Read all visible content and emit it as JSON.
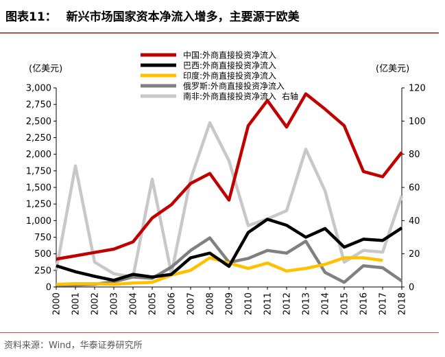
{
  "header": {
    "figure_label": "图表11：",
    "title": "新兴市场国家资本净流入增多，主要源于欧美"
  },
  "footer": {
    "source": "资料来源：Wind，华泰证券研究所"
  },
  "chart_data": {
    "type": "line",
    "ylabel_left": "(亿美元)",
    "ylabel_right": "(亿美元)",
    "x": [
      "2000",
      "2001",
      "2002",
      "2003",
      "2004",
      "2005",
      "2006",
      "2007",
      "2008",
      "2009",
      "2010",
      "2011",
      "2012",
      "2013",
      "2014",
      "2015",
      "2016",
      "2017",
      "2018"
    ],
    "ylim_left": [
      0,
      3000
    ],
    "ylim_right": [
      0,
      120
    ],
    "yticks_left": [
      "0",
      "250",
      "500",
      "750",
      "1,000",
      "1,250",
      "1,500",
      "1,750",
      "2,000",
      "2,250",
      "2,500",
      "2,750",
      "3,000"
    ],
    "yticks_right": [
      "0",
      "20",
      "40",
      "60",
      "80",
      "100",
      "120"
    ],
    "legend_position": "top-center",
    "grid": false,
    "series": [
      {
        "name": "中国:外商直接投资净流入",
        "color": "#c00000",
        "axis": "left",
        "values": [
          420,
          470,
          520,
          570,
          680,
          1040,
          1240,
          1560,
          1710,
          1310,
          2430,
          2810,
          2410,
          2910,
          2680,
          2430,
          1740,
          1660,
          2030
        ]
      },
      {
        "name": "巴西:外商直接投资净流入",
        "color": "#000000",
        "axis": "left",
        "values": [
          320,
          230,
          160,
          100,
          190,
          150,
          190,
          440,
          510,
          310,
          820,
          1020,
          930,
          750,
          880,
          600,
          720,
          700,
          890
        ]
      },
      {
        "name": "印度:外商直接投资净流入",
        "color": "#ffc000",
        "axis": "left",
        "values": [
          40,
          50,
          50,
          40,
          60,
          70,
          180,
          250,
          440,
          360,
          280,
          360,
          240,
          280,
          340,
          440,
          440,
          400,
          null
        ]
      },
      {
        "name": "俄罗斯:外商直接投资净流入",
        "color": "#808080",
        "axis": "left",
        "values": [
          30,
          30,
          40,
          80,
          150,
          130,
          300,
          550,
          740,
          370,
          430,
          550,
          510,
          690,
          220,
          70,
          320,
          290,
          90
        ]
      },
      {
        "name": "南非:外商直接投资净流入",
        "color": "#c8c8c8",
        "axis": "right",
        "axis_label": "右轴",
        "values": [
          10,
          73,
          15,
          8,
          6,
          65,
          8,
          65,
          99,
          76,
          37,
          41,
          46,
          83,
          58,
          15,
          22,
          21,
          55
        ]
      }
    ]
  }
}
